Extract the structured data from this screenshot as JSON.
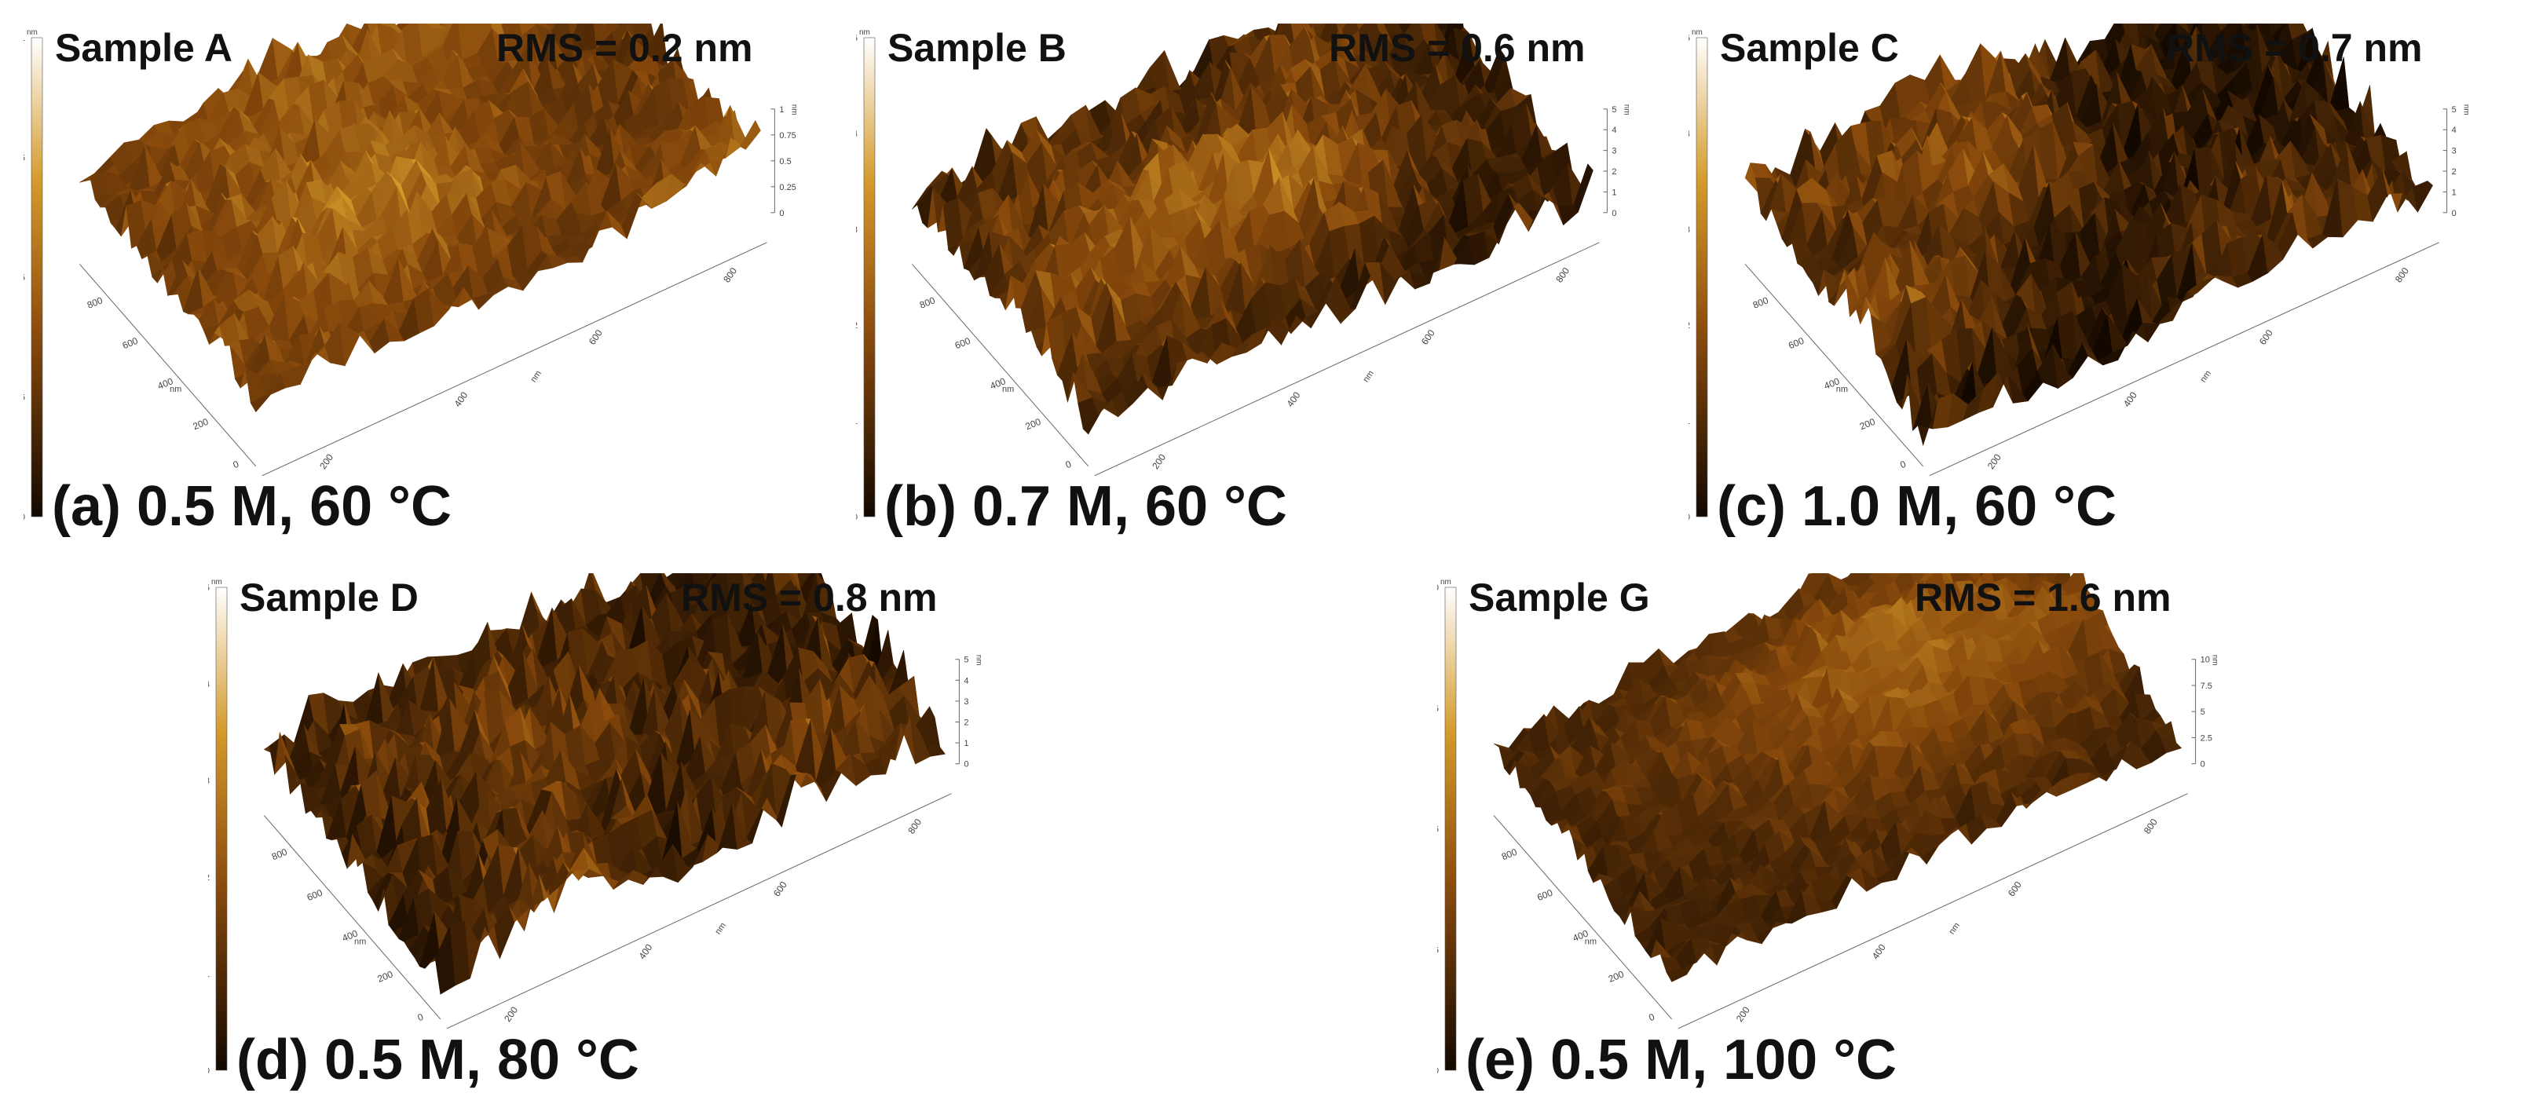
{
  "panels": [
    {
      "id": "a",
      "sample": "Sample A",
      "rms": "RMS = 0.2 nm",
      "caption": "(a) 0.5 M, 60 °C",
      "unit": "nm",
      "colorbar_ticks": [
        "1",
        "0.75",
        "0.5",
        "0.25",
        "0"
      ],
      "z_axis_ticks": [
        "1",
        "0.75",
        "0.5",
        "0.25",
        "0"
      ],
      "x_axis_ticks": [
        "800",
        "600",
        "400",
        "200",
        "0"
      ],
      "y_axis_ticks": [
        "200",
        "400",
        "600",
        "800"
      ],
      "axis_unit": "nm",
      "z_max": 1,
      "surface": {
        "roughness": 0.42,
        "brightness": 0.72,
        "seed": 11
      }
    },
    {
      "id": "b",
      "sample": "Sample B",
      "rms": "RMS = 0.6 nm",
      "caption": "(b) 0.7 M, 60 °C",
      "unit": "nm",
      "colorbar_ticks": [
        "5",
        "4",
        "3",
        "2",
        "1",
        "0"
      ],
      "z_axis_ticks": [
        "5",
        "4",
        "3",
        "2",
        "1",
        "0"
      ],
      "x_axis_ticks": [
        "800",
        "600",
        "400",
        "200",
        "0"
      ],
      "y_axis_ticks": [
        "200",
        "400",
        "600",
        "800"
      ],
      "axis_unit": "nm",
      "z_max": 5,
      "surface": {
        "roughness": 0.5,
        "brightness": 0.42,
        "seed": 23
      }
    },
    {
      "id": "c",
      "sample": "Sample C",
      "rms": "RMS = 0.7 nm",
      "caption": "(c) 1.0 M, 60 °C",
      "unit": "nm",
      "colorbar_ticks": [
        "5",
        "4",
        "3",
        "2",
        "1",
        "0"
      ],
      "z_axis_ticks": [
        "5",
        "4",
        "3",
        "2",
        "1",
        "0"
      ],
      "x_axis_ticks": [
        "800",
        "600",
        "400",
        "200",
        "0"
      ],
      "y_axis_ticks": [
        "200",
        "400",
        "600",
        "800"
      ],
      "axis_unit": "nm",
      "z_max": 5,
      "surface": {
        "roughness": 0.55,
        "brightness": 0.36,
        "seed": 37
      }
    },
    {
      "id": "d",
      "sample": "Sample D",
      "rms": "RMS = 0.8 nm",
      "caption": "(d) 0.5 M, 80 °C",
      "unit": "nm",
      "colorbar_ticks": [
        "5",
        "4",
        "3",
        "2",
        "1",
        "0"
      ],
      "z_axis_ticks": [
        "5",
        "4",
        "3",
        "2",
        "1",
        "0"
      ],
      "x_axis_ticks": [
        "800",
        "600",
        "400",
        "200",
        "0"
      ],
      "y_axis_ticks": [
        "200",
        "400",
        "600",
        "800"
      ],
      "axis_unit": "nm",
      "z_max": 5,
      "surface": {
        "roughness": 0.6,
        "brightness": 0.45,
        "seed": 53
      }
    },
    {
      "id": "e",
      "sample": "Sample G",
      "rms": "RMS = 1.6 nm",
      "caption": "(e) 0.5 M, 100 °C",
      "unit": "nm",
      "colorbar_ticks": [
        "10",
        "7.5",
        "5",
        "2.5",
        "0"
      ],
      "z_axis_ticks": [
        "10",
        "7.5",
        "5",
        "2.5",
        "0"
      ],
      "x_axis_ticks": [
        "800",
        "600",
        "400",
        "200",
        "0"
      ],
      "y_axis_ticks": [
        "200",
        "400",
        "600",
        "800"
      ],
      "axis_unit": "nm",
      "z_max": 10,
      "surface": {
        "roughness": 0.3,
        "brightness": 0.55,
        "seed": 71
      }
    }
  ],
  "colors": {
    "cmap_dark": "#120800",
    "cmap_mid": "#8a4a0c",
    "cmap_gold": "#d49a2a",
    "cmap_light": "#ffffff"
  }
}
